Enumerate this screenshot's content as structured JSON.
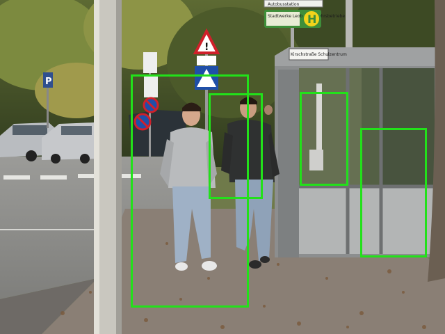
{
  "signs": {
    "top_banner": "Autobusstation",
    "bus_sign": "Stadtwerke Leoben Verkehrsbetriebe",
    "bus_sign_h": "H",
    "shelter_label": "Kirschstraße Schulzentrum",
    "parking_p": "P"
  },
  "colors": {
    "detection_box": "#22e11a",
    "shelter_frame": "#8c8e8f",
    "bus_sign_green": "#3f8e3a",
    "sidewalk": "#8a7f75"
  },
  "detections": [
    {
      "label": "pedestrian"
    },
    {
      "label": "pedestrian"
    },
    {
      "label": "pedestrian"
    },
    {
      "label": "pedestrian"
    }
  ]
}
